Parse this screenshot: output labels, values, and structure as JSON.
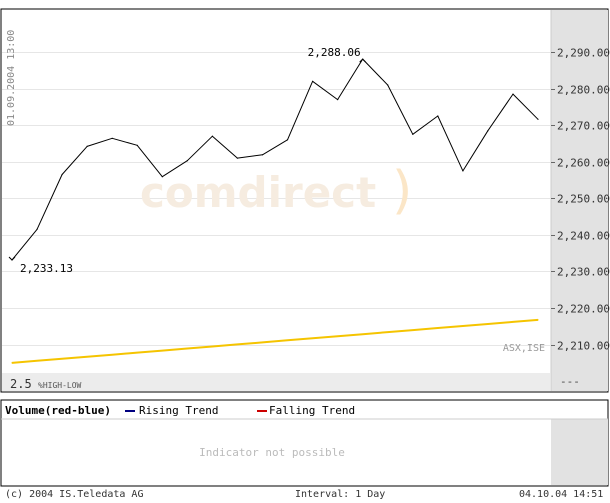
{
  "chart_data": {
    "type": "line",
    "timestamp_label": "01.09.2004 13:00",
    "watermark": "comdirect",
    "exchange": "ASX,ISE",
    "range_label_value": "2.5",
    "range_label_text": "%HIGH-LOW",
    "y_ticks": [
      "2,290.00",
      "2,280.00",
      "2,270.00",
      "2,260.00",
      "2,250.00",
      "2,240.00",
      "2,230.00",
      "2,220.00",
      "2,210.00"
    ],
    "y_tick_values": [
      2290,
      2280,
      2270,
      2260,
      2250,
      2240,
      2230,
      2220,
      2210
    ],
    "ylim": [
      2202.5,
      2301.5
    ],
    "lower_right_marker": "---",
    "series": [
      {
        "color": "#000000",
        "values": [
          2233.13,
          2241.5,
          2256.5,
          2264.2,
          2266.4,
          2264.5,
          2255.9,
          2260.3,
          2267.0,
          2261.0,
          2261.9,
          2266.0,
          2282.0,
          2277.0,
          2288.06,
          2281.0,
          2267.5,
          2272.5,
          2257.5,
          2268.5,
          2278.5,
          2271.6
        ]
      },
      {
        "color": "#f5c400",
        "values": [
          2205.0,
          2205.56,
          2206.12,
          2206.68,
          2207.24,
          2207.8,
          2208.36,
          2208.92,
          2209.48,
          2210.04,
          2210.6,
          2211.16,
          2211.72,
          2212.28,
          2212.84,
          2213.4,
          2213.96,
          2214.52,
          2215.08,
          2215.64,
          2216.2,
          2216.76
        ]
      }
    ],
    "annotations": [
      {
        "label": "2,233.13",
        "value": 2233.13,
        "index": 0
      },
      {
        "label": "2,288.06",
        "value": 2288.06,
        "index": 14
      }
    ]
  },
  "indicator": {
    "volume_label": "Volume(red-blue)",
    "rising_label": "Rising Trend",
    "falling_label": "Falling Trend",
    "rising_color": "#000080",
    "falling_color": "#cc0000",
    "message": "Indicator not possible"
  },
  "footer": {
    "copyright": "(c) 2004  IS.Teledata AG",
    "interval": "Interval: 1 Day",
    "date": "04.10.04 14:51"
  }
}
